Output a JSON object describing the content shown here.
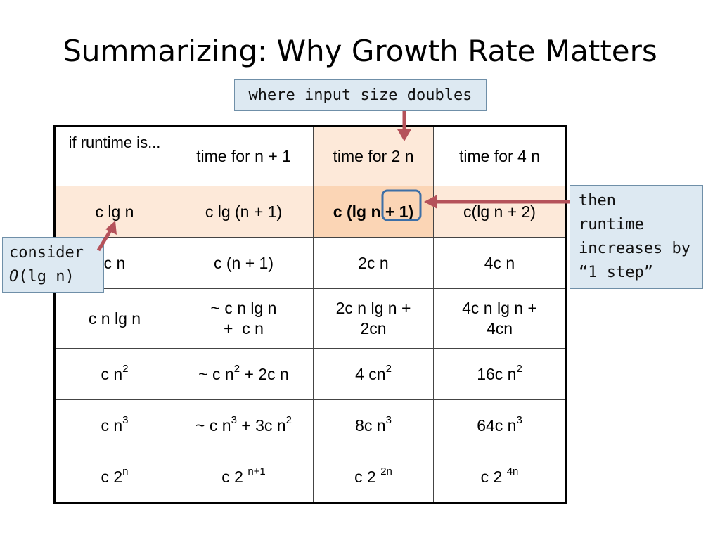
{
  "title": "Summarizing: Why Growth Rate Matters",
  "callouts": {
    "input": "where input size doubles",
    "runtime": [
      "then",
      "runtime",
      "increases by",
      "“1 step”"
    ],
    "consider": [
      "consider",
      "O",
      "(lg n)"
    ]
  },
  "table": {
    "headers": [
      "if runtime is...",
      "time for n + 1",
      "time for 2 n",
      "time for 4 n"
    ],
    "rows": [
      [
        "c lg n",
        "c lg (n + 1)",
        "c (lg n + 1)",
        "c(lg n + 2)"
      ],
      [
        "c n",
        "c (n + 1)",
        "2c n",
        "4c n"
      ],
      [
        "c n lg n",
        "~ c n lg n",
        "+  c n",
        "2c n lg n +",
        "2cn",
        "4c n lg n +",
        "4cn"
      ],
      [
        "c n",
        "2",
        "~ c n",
        "2",
        " + 2c n",
        "4 cn",
        "2",
        "16c n",
        "2"
      ],
      [
        "c n",
        "3",
        "~ c n",
        "3",
        " + 3c n",
        "2",
        "8c n",
        "3",
        "64c n",
        "3"
      ],
      [
        "c 2",
        "n",
        "c 2 ",
        "n+1",
        "c 2 ",
        "2n",
        "c 2 ",
        "4n"
      ]
    ]
  },
  "colors": {
    "highlight_row": "#fde9d9",
    "highlight_cell": "#fbd5b5",
    "callout_fill": "#dde9f2",
    "arrow": "#b5525a",
    "box_outline": "#3d6fa6"
  }
}
